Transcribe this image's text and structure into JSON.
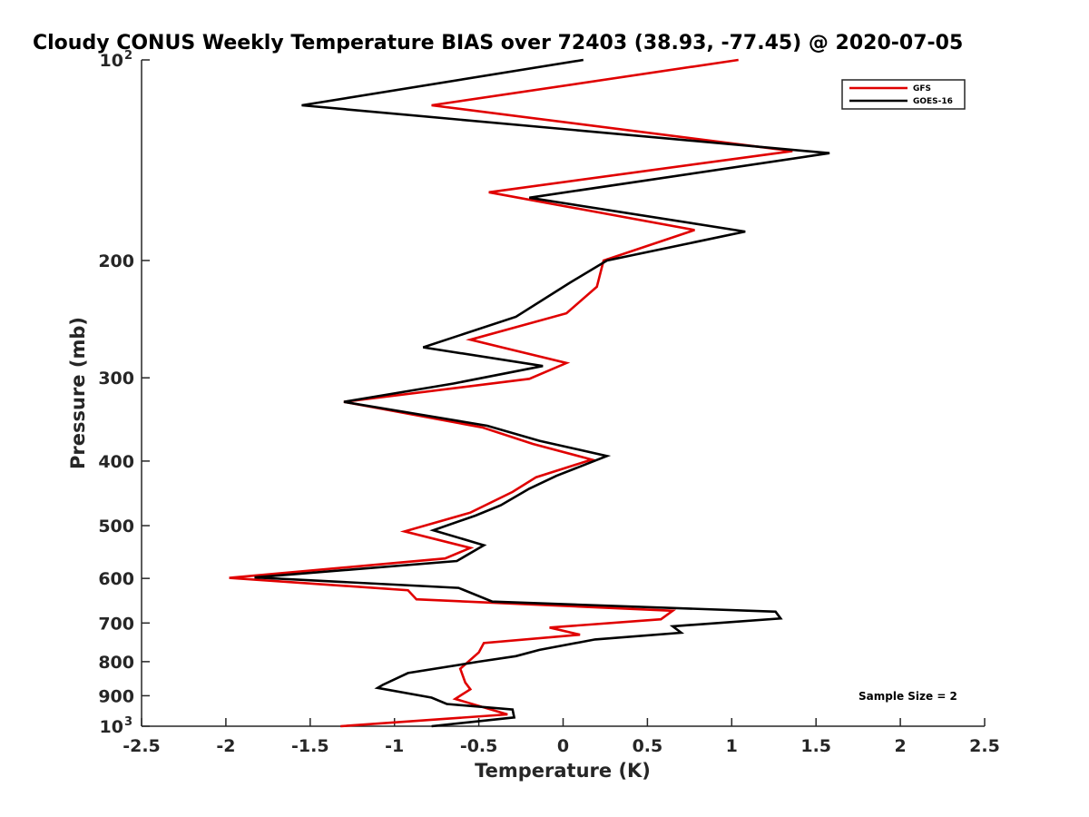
{
  "chart_data": {
    "type": "line",
    "title": "Cloudy CONUS Weekly Temperature BIAS over 72403 (38.93, -77.45) @ 2020-07-05",
    "xlabel": "Temperature (K)",
    "ylabel": "Pressure (mb)",
    "xlim": [
      -2.5,
      2.5
    ],
    "ylim": [
      100,
      1000
    ],
    "yscale": "log",
    "y_reversed": true,
    "grid": false,
    "legend_position": "top-right",
    "x_ticks": [
      -2.5,
      -2,
      -1.5,
      -1,
      -0.5,
      0,
      0.5,
      1,
      1.5,
      2,
      2.5
    ],
    "x_tick_labels": [
      "-2.5",
      "-2",
      "-1.5",
      "-1",
      "-0.5",
      "0",
      "0.5",
      "1",
      "1.5",
      "2",
      "2.5"
    ],
    "y_ticks": [
      100,
      200,
      300,
      400,
      500,
      600,
      700,
      800,
      900,
      1000
    ],
    "y_tick_labels": [
      {
        "base": "10",
        "exp": "2"
      },
      {
        "base": "200",
        "exp": ""
      },
      {
        "base": "300",
        "exp": ""
      },
      {
        "base": "400",
        "exp": ""
      },
      {
        "base": "500",
        "exp": ""
      },
      {
        "base": "600",
        "exp": ""
      },
      {
        "base": "700",
        "exp": ""
      },
      {
        "base": "800",
        "exp": ""
      },
      {
        "base": "900",
        "exp": ""
      },
      {
        "base": "10",
        "exp": "3"
      }
    ],
    "annotation": "Sample Size = 2",
    "series": [
      {
        "name": "GFS",
        "color": "#e00000",
        "points": [
          [
            1.04,
            100
          ],
          [
            -0.78,
            117
          ],
          [
            1.36,
            137
          ],
          [
            -0.44,
            158
          ],
          [
            0.78,
            180
          ],
          [
            0.24,
            200
          ],
          [
            0.2,
            219
          ],
          [
            0.02,
            240
          ],
          [
            -0.55,
            263
          ],
          [
            0.02,
            285
          ],
          [
            -0.2,
            301
          ],
          [
            -1.3,
            326
          ],
          [
            -0.48,
            356
          ],
          [
            -0.18,
            377
          ],
          [
            0.17,
            398
          ],
          [
            -0.16,
            423
          ],
          [
            -0.3,
            445
          ],
          [
            -0.55,
            478
          ],
          [
            -0.94,
            510
          ],
          [
            -0.55,
            540
          ],
          [
            -0.7,
            560
          ],
          [
            -1.98,
            599
          ],
          [
            -0.92,
            625
          ],
          [
            -0.87,
            645
          ],
          [
            0.65,
            671
          ],
          [
            0.58,
            691
          ],
          [
            -0.08,
            711
          ],
          [
            0.1,
            729
          ],
          [
            -0.47,
            750
          ],
          [
            -0.5,
            775
          ],
          [
            -0.61,
            820
          ],
          [
            -0.58,
            860
          ],
          [
            -0.55,
            880
          ],
          [
            -0.64,
            910
          ],
          [
            -0.33,
            960
          ],
          [
            -1.32,
            1000
          ]
        ]
      },
      {
        "name": "GOES-16",
        "color": "#000000",
        "points": [
          [
            0.12,
            100
          ],
          [
            -1.55,
            117
          ],
          [
            1.58,
            138
          ],
          [
            -0.2,
            161
          ],
          [
            1.08,
            181
          ],
          [
            0.26,
            200
          ],
          [
            0.04,
            216
          ],
          [
            -0.28,
            243
          ],
          [
            -0.83,
            270
          ],
          [
            -0.12,
            288
          ],
          [
            -0.65,
            306
          ],
          [
            -1.3,
            326
          ],
          [
            -0.45,
            354
          ],
          [
            -0.14,
            373
          ],
          [
            0.26,
            393
          ],
          [
            -0.04,
            421
          ],
          [
            -0.2,
            440
          ],
          [
            -0.37,
            466
          ],
          [
            -0.52,
            483
          ],
          [
            -0.77,
            508
          ],
          [
            -0.47,
            535
          ],
          [
            -0.63,
            565
          ],
          [
            -1.83,
            598
          ],
          [
            -0.62,
            620
          ],
          [
            -0.42,
            650
          ],
          [
            1.26,
            673
          ],
          [
            1.29,
            689
          ],
          [
            0.65,
            708
          ],
          [
            0.7,
            724
          ],
          [
            0.19,
            741
          ],
          [
            -0.14,
            768
          ],
          [
            -0.28,
            785
          ],
          [
            -0.5,
            800
          ],
          [
            -0.92,
            832
          ],
          [
            -1.07,
            867
          ],
          [
            -1.1,
            876
          ],
          [
            -0.78,
            906
          ],
          [
            -0.69,
            926
          ],
          [
            -0.3,
            944
          ],
          [
            -0.29,
            970
          ],
          [
            -0.78,
            1000
          ]
        ]
      }
    ]
  }
}
